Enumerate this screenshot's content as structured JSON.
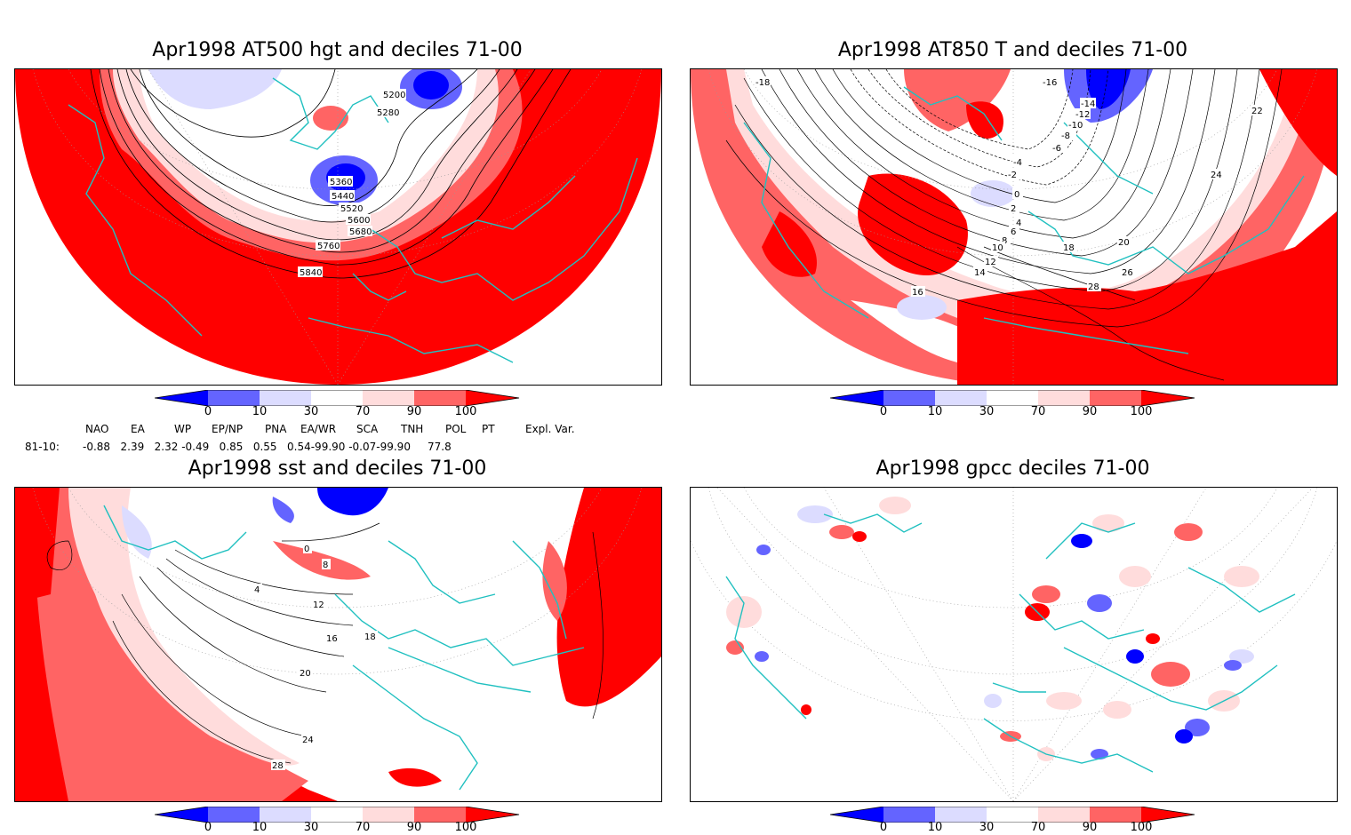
{
  "colors": {
    "deep_blue": "#0000ff",
    "mid_blue": "#6464ff",
    "light_blue": "#dcdcff",
    "white": "#ffffff",
    "light_red": "#ffdcdc",
    "mid_red": "#ff6464",
    "deep_red": "#ff0000",
    "coast": "#20c0c0",
    "contour": "#000000"
  },
  "colorbar": {
    "tick_labels": [
      "0",
      "10",
      "30",
      "70",
      "90",
      "100"
    ]
  },
  "panels": {
    "top_left": {
      "title": "Apr1998 AT500 hgt and deciles 71-00",
      "contour_labels": [
        "5200",
        "5280",
        "5360",
        "5440",
        "5520",
        "5600",
        "5680",
        "5760",
        "5840"
      ]
    },
    "top_right": {
      "title": "Apr1998 AT850 T and deciles 71-00",
      "contour_labels": [
        "-18",
        "-16",
        "-14",
        "-12",
        "-10",
        "-8",
        "-6",
        "-4",
        "-2",
        "0",
        "2",
        "4",
        "6",
        "8",
        "10",
        "12",
        "14",
        "16",
        "18",
        "20",
        "22",
        "24",
        "26",
        "28"
      ]
    },
    "bottom_left": {
      "title": "Apr1998 sst and deciles 71-00",
      "contour_labels": [
        "0",
        "4",
        "8",
        "12",
        "16",
        "18",
        "20",
        "24",
        "28"
      ]
    },
    "bottom_right": {
      "title": "Apr1998 gpcc deciles 71-00"
    }
  },
  "indices": {
    "headers": [
      "NAO",
      "EA",
      "WP",
      "EP/NP",
      "PNA",
      "EA/WR",
      "SCA",
      "TNH",
      "POL",
      "PT",
      "Expl. Var."
    ],
    "row_label": "81-10:",
    "values_line": "-0.88   2.39   2.32 -0.49   0.85   0.55   0.54-99.90 -0.07-99.90     77.8"
  }
}
